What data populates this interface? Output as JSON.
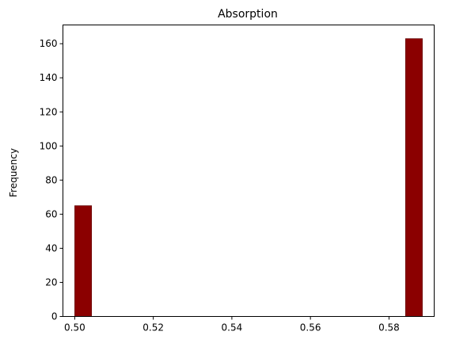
{
  "chart_data": {
    "type": "bar",
    "title": "Absorption",
    "xlabel": "",
    "ylabel": "Frequency",
    "xlim": [
      0.497,
      0.5915
    ],
    "ylim": [
      0,
      171
    ],
    "xticks": [
      0.5,
      0.52,
      0.54,
      0.56,
      0.58
    ],
    "xtick_labels": [
      "0.50",
      "0.52",
      "0.54",
      "0.56",
      "0.58"
    ],
    "yticks": [
      0,
      20,
      40,
      60,
      80,
      100,
      120,
      140,
      160
    ],
    "ytick_labels": [
      "0",
      "20",
      "40",
      "60",
      "80",
      "100",
      "120",
      "140",
      "160"
    ],
    "bars": [
      {
        "x_start": 0.5,
        "x_end": 0.5043,
        "value": 65
      },
      {
        "x_start": 0.5842,
        "x_end": 0.5885,
        "value": 163
      }
    ],
    "bar_color": "#8b0000",
    "grid": false,
    "legend": "none"
  }
}
